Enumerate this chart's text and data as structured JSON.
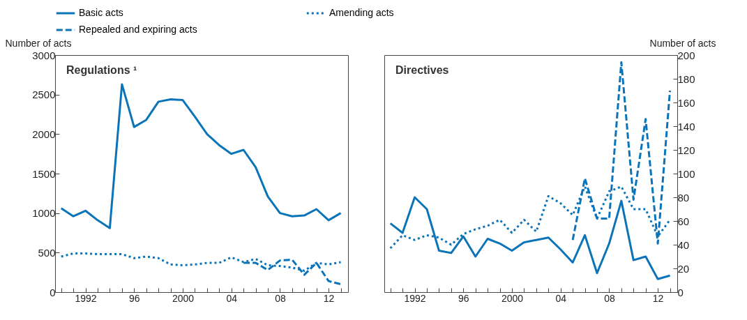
{
  "chart_data": [
    {
      "type": "line",
      "title": "Regulations ¹",
      "ylabel": "Number of acts",
      "x": [
        1990,
        1991,
        1992,
        1993,
        1994,
        1995,
        1996,
        1997,
        1998,
        1999,
        2000,
        2001,
        2002,
        2003,
        2004,
        2005,
        2006,
        2007,
        2008,
        2009,
        2010,
        2011,
        2012,
        2013
      ],
      "xlim": [
        1989.5,
        2013.6
      ],
      "xticks": [
        {
          "value": 1990,
          "label": null
        },
        {
          "value": 1991,
          "label": null
        },
        {
          "value": 1992,
          "label": "1992"
        },
        {
          "value": 1993,
          "label": null
        },
        {
          "value": 1994,
          "label": null
        },
        {
          "value": 1995,
          "label": null
        },
        {
          "value": 1996,
          "label": "96"
        },
        {
          "value": 1997,
          "label": null
        },
        {
          "value": 1998,
          "label": null
        },
        {
          "value": 1999,
          "label": null
        },
        {
          "value": 2000,
          "label": "2000"
        },
        {
          "value": 2001,
          "label": null
        },
        {
          "value": 2002,
          "label": null
        },
        {
          "value": 2003,
          "label": null
        },
        {
          "value": 2004,
          "label": "04"
        },
        {
          "value": 2005,
          "label": null
        },
        {
          "value": 2006,
          "label": null
        },
        {
          "value": 2007,
          "label": null
        },
        {
          "value": 2008,
          "label": "08"
        },
        {
          "value": 2009,
          "label": null
        },
        {
          "value": 2010,
          "label": null
        },
        {
          "value": 2011,
          "label": null
        },
        {
          "value": 2012,
          "label": "12"
        },
        {
          "value": 2013,
          "label": null
        }
      ],
      "ylim": [
        0,
        3000
      ],
      "yticks": [
        0,
        500,
        1000,
        1500,
        2000,
        2500,
        3000
      ],
      "grid": false,
      "legend": "top",
      "series": [
        {
          "name": "Basic acts",
          "color": "#0b74b8",
          "line_style": "solid",
          "values": [
            1060,
            960,
            1030,
            910,
            810,
            2630,
            2090,
            2180,
            2410,
            2440,
            2430,
            2220,
            2000,
            1860,
            1750,
            1800,
            1580,
            1210,
            1000,
            960,
            970,
            1050,
            910,
            1000
          ]
        },
        {
          "name": "Amending acts",
          "color": "#0b74b8",
          "line_style": "dotted",
          "values": [
            450,
            490,
            490,
            480,
            480,
            480,
            430,
            450,
            430,
            350,
            340,
            350,
            370,
            370,
            440,
            380,
            420,
            340,
            330,
            310,
            270,
            370,
            350,
            380
          ]
        },
        {
          "name": "Repealed and expiring acts",
          "color": "#0b74b8",
          "line_style": "dashed",
          "values": [
            null,
            null,
            null,
            null,
            null,
            null,
            null,
            null,
            null,
            null,
            null,
            null,
            null,
            null,
            null,
            370,
            370,
            280,
            400,
            410,
            220,
            370,
            140,
            100
          ]
        }
      ]
    },
    {
      "type": "line",
      "title": "Directives",
      "ylabel": "Number of acts",
      "x": [
        1990,
        1991,
        1992,
        1993,
        1994,
        1995,
        1996,
        1997,
        1998,
        1999,
        2000,
        2001,
        2002,
        2003,
        2004,
        2005,
        2006,
        2007,
        2008,
        2009,
        2010,
        2011,
        2012,
        2013
      ],
      "xlim": [
        1989.5,
        2013.6
      ],
      "xticks": [
        {
          "value": 1990,
          "label": null
        },
        {
          "value": 1991,
          "label": null
        },
        {
          "value": 1992,
          "label": "1992"
        },
        {
          "value": 1993,
          "label": null
        },
        {
          "value": 1994,
          "label": null
        },
        {
          "value": 1995,
          "label": null
        },
        {
          "value": 1996,
          "label": "96"
        },
        {
          "value": 1997,
          "label": null
        },
        {
          "value": 1998,
          "label": null
        },
        {
          "value": 1999,
          "label": null
        },
        {
          "value": 2000,
          "label": "2000"
        },
        {
          "value": 2001,
          "label": null
        },
        {
          "value": 2002,
          "label": null
        },
        {
          "value": 2003,
          "label": null
        },
        {
          "value": 2004,
          "label": "04"
        },
        {
          "value": 2005,
          "label": null
        },
        {
          "value": 2006,
          "label": null
        },
        {
          "value": 2007,
          "label": null
        },
        {
          "value": 2008,
          "label": "08"
        },
        {
          "value": 2009,
          "label": null
        },
        {
          "value": 2010,
          "label": null
        },
        {
          "value": 2011,
          "label": null
        },
        {
          "value": 2012,
          "label": "12"
        },
        {
          "value": 2013,
          "label": null
        }
      ],
      "ylim": [
        0,
        200
      ],
      "yticks": [
        0,
        20,
        40,
        60,
        80,
        100,
        120,
        140,
        160,
        180,
        200
      ],
      "grid": false,
      "legend": "top",
      "series": [
        {
          "name": "Basic acts",
          "color": "#0b74b8",
          "line_style": "solid",
          "values": [
            58,
            50,
            80,
            70,
            35,
            33,
            47,
            30,
            45,
            41,
            35,
            42,
            44,
            46,
            36,
            25,
            48,
            16,
            41,
            77,
            27,
            30,
            11,
            14
          ]
        },
        {
          "name": "Amending acts",
          "color": "#0b74b8",
          "line_style": "dotted",
          "values": [
            37,
            48,
            44,
            48,
            46,
            40,
            49,
            53,
            56,
            61,
            50,
            61,
            51,
            81,
            75,
            65,
            89,
            62,
            85,
            89,
            70,
            70,
            47,
            61
          ]
        },
        {
          "name": "Repealed and expiring acts",
          "color": "#0b74b8",
          "line_style": "dashed",
          "values": [
            null,
            null,
            null,
            null,
            null,
            null,
            null,
            null,
            null,
            null,
            null,
            null,
            null,
            null,
            null,
            44,
            96,
            62,
            62,
            194,
            78,
            146,
            41,
            170
          ]
        }
      ]
    }
  ]
}
